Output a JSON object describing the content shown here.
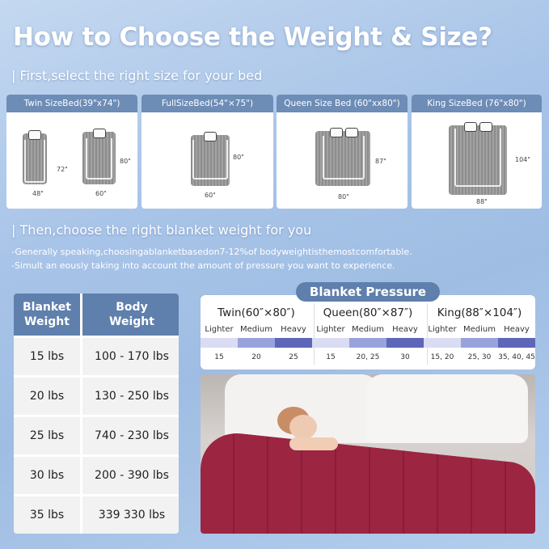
{
  "title": "How to Choose the Weight & Size?",
  "step1": "| First,select the right size for your bed",
  "beds": [
    {
      "label": "Twin SizeBed(39\"x74\")",
      "dims": [
        {
          "w": "48\"",
          "h": "72\""
        },
        {
          "w": "60\"",
          "h": "80\""
        }
      ]
    },
    {
      "label": "FullSizeBed(54\"×75\")",
      "dims": [
        {
          "w": "60\"",
          "h": "80\""
        }
      ]
    },
    {
      "label": "Queen Size Bed  (60\"xx80\")",
      "dims": [
        {
          "w": "80\"",
          "h": "87\""
        }
      ]
    },
    {
      "label": "King SizeBed (76\"x80\")",
      "dims": [
        {
          "w": "88\"",
          "h": "104\""
        }
      ]
    }
  ],
  "step2": "| Then,choose the right blanket weight for you",
  "bullets": [
    "-Generally speaking,choosingablanketbasedon7-12%of bodyweightisthemostcomfortable.",
    "-Simult an eously taking into account the amount of pressure you want to experience."
  ],
  "table": {
    "headers": [
      "Blanket\nWeight",
      "Body\nWeight"
    ],
    "rows": [
      [
        "15 lbs",
        "100 - 170 lbs"
      ],
      [
        "20 lbs",
        "130 - 250 lbs"
      ],
      [
        "25 lbs",
        "740 - 230 lbs"
      ],
      [
        "30 lbs",
        "200 - 390 lbs"
      ],
      [
        "35 lbs",
        "339  330 lbs"
      ]
    ]
  },
  "pressure": {
    "title": "Blanket Pressure",
    "levels": [
      "Lighter",
      "Medium",
      "Heavy"
    ],
    "level_colors": [
      "#d9dcf3",
      "#9aa2dc",
      "#5d66b8"
    ],
    "groups": [
      {
        "name": "Twin(60″×80″)",
        "values": [
          "15",
          "20",
          "25"
        ]
      },
      {
        "name": "Queen(80″×87″)",
        "values": [
          "15",
          "20, 25",
          "30"
        ]
      },
      {
        "name": "King(88″×104″)",
        "values": [
          "15, 20",
          "25, 30",
          "35, 40, 45"
        ]
      }
    ]
  }
}
